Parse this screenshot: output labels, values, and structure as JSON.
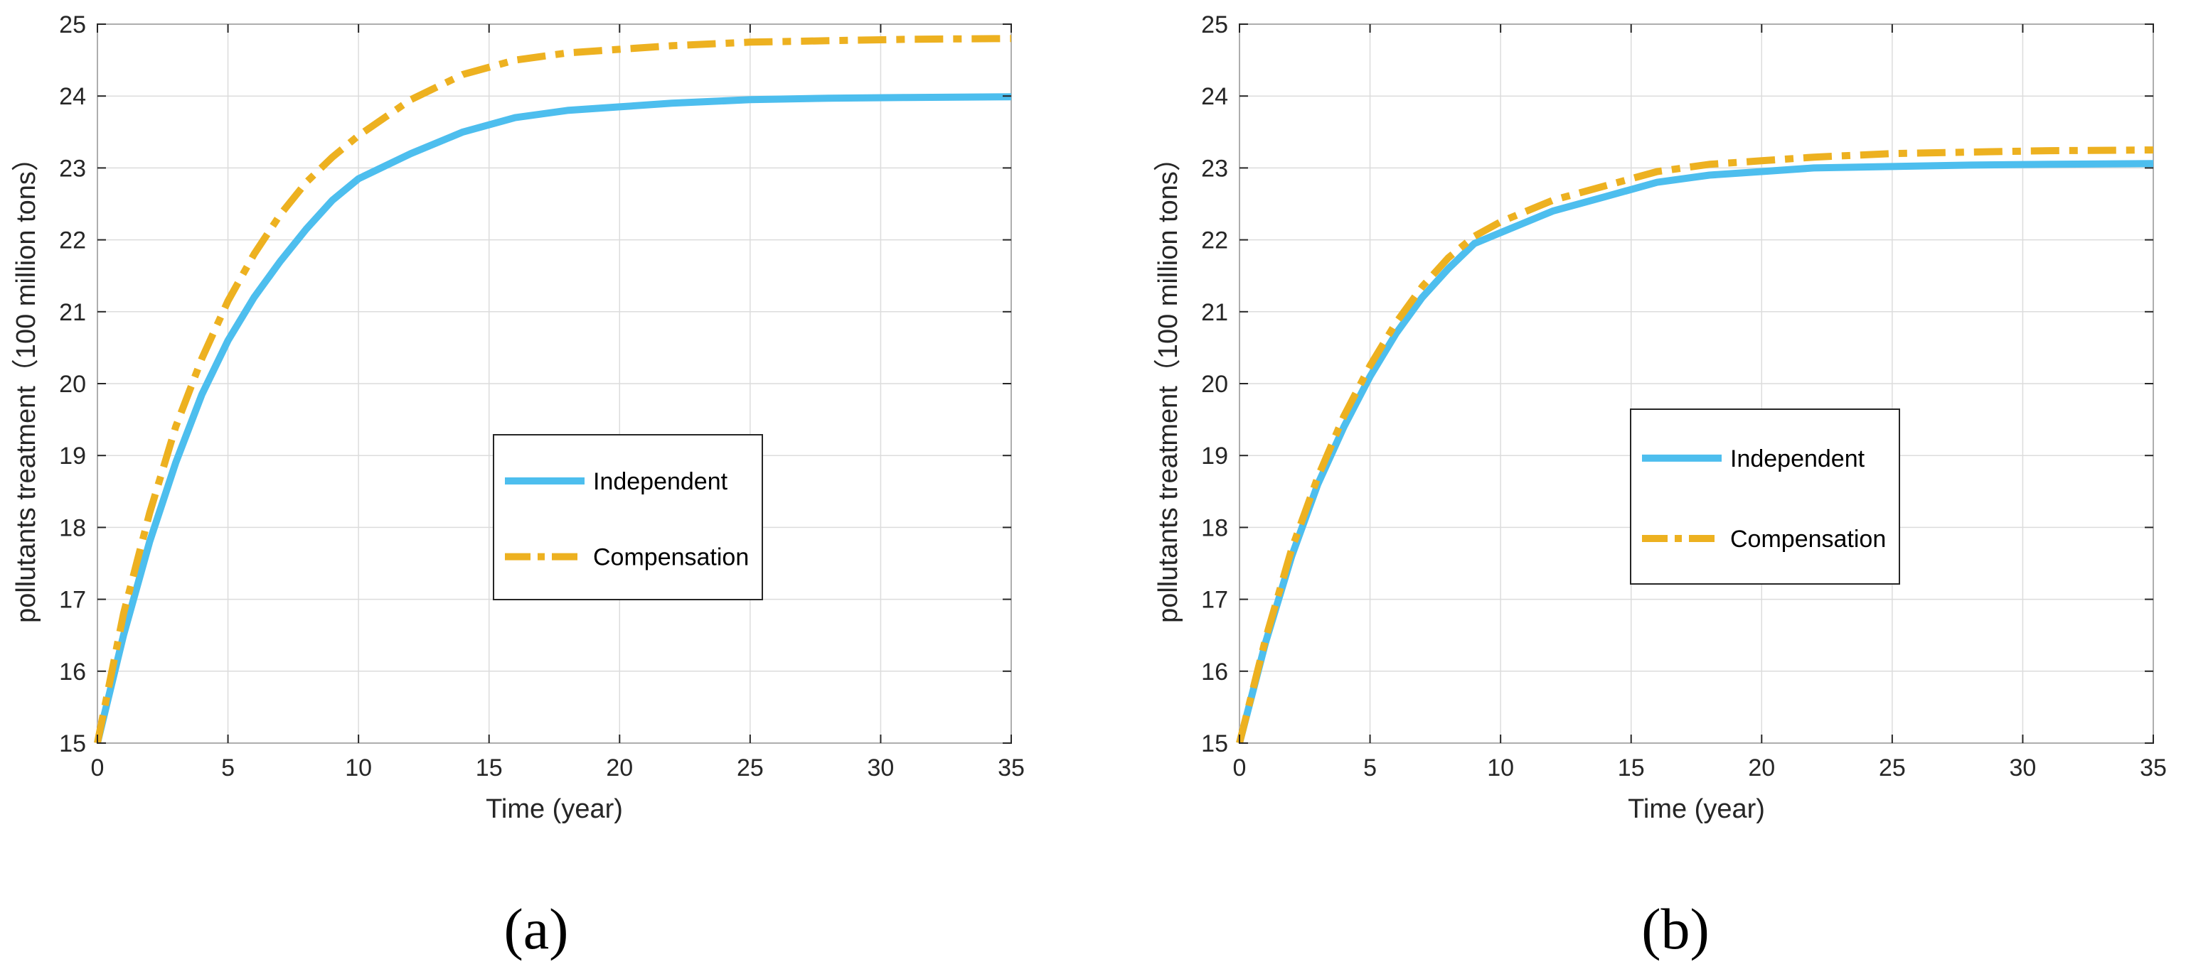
{
  "colors": {
    "independent": "#4DBEEE",
    "compensation": "#EDB120",
    "grid": "#DCDCDC",
    "axis": "#262626"
  },
  "chart_data": [
    {
      "panel_label": "(a)",
      "type": "line",
      "xlabel": "Time (year)",
      "ylabel": "pollutants treatment（100 million tons）",
      "xlim": [
        0,
        35
      ],
      "ylim": [
        15,
        25
      ],
      "xticks": [
        0,
        5,
        10,
        15,
        20,
        25,
        30,
        35
      ],
      "yticks": [
        15,
        16,
        17,
        18,
        19,
        20,
        21,
        22,
        23,
        24,
        25
      ],
      "grid": true,
      "legend_position": "center-right",
      "series": [
        {
          "name": "Independent",
          "style": "solid",
          "x": [
            0,
            1,
            2,
            3,
            4,
            5,
            6,
            7,
            8,
            9,
            10,
            12,
            14,
            16,
            18,
            20,
            22,
            25,
            28,
            31,
            35
          ],
          "y": [
            15.0,
            16.5,
            17.8,
            18.9,
            19.85,
            20.6,
            21.2,
            21.7,
            22.15,
            22.55,
            22.85,
            23.2,
            23.5,
            23.7,
            23.8,
            23.85,
            23.9,
            23.95,
            23.97,
            23.98,
            23.99
          ]
        },
        {
          "name": "Compensation",
          "style": "dash-dot",
          "x": [
            0,
            1,
            2,
            3,
            4,
            5,
            6,
            7,
            8,
            9,
            10,
            12,
            14,
            16,
            18,
            20,
            22,
            25,
            28,
            31,
            35
          ],
          "y": [
            15.0,
            16.8,
            18.2,
            19.4,
            20.35,
            21.15,
            21.8,
            22.35,
            22.8,
            23.15,
            23.45,
            23.95,
            24.3,
            24.5,
            24.6,
            24.65,
            24.7,
            24.75,
            24.77,
            24.79,
            24.8
          ]
        }
      ]
    },
    {
      "panel_label": "(b)",
      "type": "line",
      "xlabel": "Time (year)",
      "ylabel": "pollutants treatment（100 million tons）",
      "xlim": [
        0,
        35
      ],
      "ylim": [
        15,
        25
      ],
      "xticks": [
        0,
        5,
        10,
        15,
        20,
        25,
        30,
        35
      ],
      "yticks": [
        15,
        16,
        17,
        18,
        19,
        20,
        21,
        22,
        23,
        24,
        25
      ],
      "grid": true,
      "legend_position": "center-right",
      "series": [
        {
          "name": "Independent",
          "style": "solid",
          "x": [
            0,
            1,
            2,
            3,
            4,
            5,
            6,
            7,
            8,
            9,
            10,
            12,
            14,
            16,
            18,
            20,
            22,
            25,
            28,
            31,
            35
          ],
          "y": [
            15.0,
            16.4,
            17.6,
            18.6,
            19.4,
            20.1,
            20.7,
            21.2,
            21.6,
            21.95,
            22.1,
            22.4,
            22.6,
            22.8,
            22.9,
            22.95,
            23.0,
            23.02,
            23.04,
            23.05,
            23.06
          ]
        },
        {
          "name": "Compensation",
          "style": "dash-dot",
          "x": [
            0,
            1,
            2,
            3,
            4,
            5,
            6,
            7,
            8,
            9,
            10,
            12,
            14,
            16,
            18,
            20,
            22,
            25,
            28,
            31,
            35
          ],
          "y": [
            15.0,
            16.45,
            17.7,
            18.7,
            19.55,
            20.25,
            20.85,
            21.35,
            21.75,
            22.05,
            22.25,
            22.55,
            22.75,
            22.95,
            23.05,
            23.1,
            23.15,
            23.2,
            23.22,
            23.24,
            23.25
          ]
        }
      ]
    }
  ]
}
